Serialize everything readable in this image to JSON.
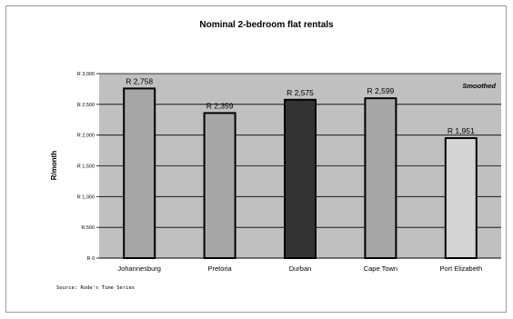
{
  "chart_data": {
    "type": "bar",
    "title": "Nominal 2-bedroom flat rentals",
    "ylabel": "R/month",
    "xlabel": "",
    "categories": [
      "Johannesburg",
      "Pretoria",
      "Durban",
      "Cape Town",
      "Port Elizabeth"
    ],
    "values": [
      2758,
      2359,
      2575,
      2599,
      1951
    ],
    "data_labels": [
      "R 2,758",
      "R 2,359",
      "R 2,575",
      "R 2,599",
      "R 1,951"
    ],
    "bar_colors": [
      "#a6a6a6",
      "#a6a6a6",
      "#333333",
      "#a6a6a6",
      "#d4d4d4"
    ],
    "ylim": [
      0,
      3000
    ],
    "yticks": [
      0,
      500,
      1000,
      1500,
      2000,
      2500,
      3000
    ],
    "ytick_labels": [
      "R 0",
      "R 500",
      "R 1,000",
      "R 1,500",
      "R 2,000",
      "R 2,500",
      "R 3,000"
    ],
    "grid": true,
    "plot_background": "#c0c0c0",
    "annotation": "Smoothed",
    "source": "Source: Rode's Time Series"
  }
}
